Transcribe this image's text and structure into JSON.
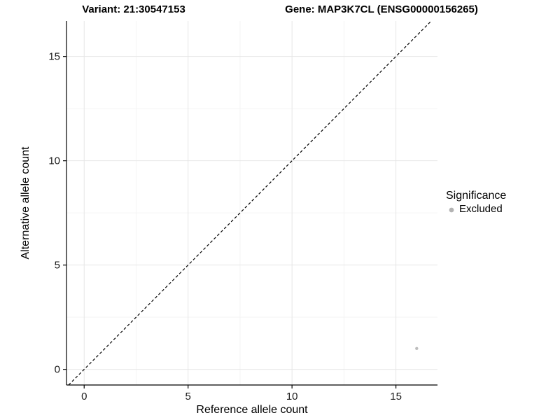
{
  "titles": {
    "variant": "Variant: 21:30547153",
    "gene": "Gene: MAP3K7CL (ENSG00000156265)"
  },
  "chart_data": {
    "type": "scatter",
    "title_left": "Variant: 21:30547153",
    "title_right": "Gene: MAP3K7CL (ENSG00000156265)",
    "xlabel": "Reference allele count",
    "ylabel": "Alternative allele count",
    "xlim": [
      -0.85,
      17.0
    ],
    "ylim": [
      -0.75,
      16.7
    ],
    "xticks": [
      0,
      5,
      10,
      15
    ],
    "yticks": [
      0,
      5,
      10,
      15
    ],
    "minor_xticks": [
      2.5,
      7.5,
      12.5
    ],
    "minor_yticks": [
      2.5,
      7.5,
      12.5
    ],
    "grid": true,
    "identity_line": {
      "type": "abline",
      "slope": 1,
      "intercept": 0,
      "style": "dashed",
      "color": "#000000"
    },
    "series": [
      {
        "name": "Excluded",
        "marker": "circle",
        "color": "#bdbdbd",
        "size": 2.2,
        "points": [
          {
            "x": 16,
            "y": 1
          }
        ]
      }
    ],
    "legend": {
      "title": "Significance",
      "position": "right",
      "items": [
        {
          "label": "Excluded",
          "color": "#b3b3b3"
        }
      ]
    }
  },
  "colors": {
    "grid_major": "#e6e6e6",
    "grid_minor": "#f4f4f4",
    "axis": "#000000",
    "tick_text": "#1a1a1a"
  }
}
